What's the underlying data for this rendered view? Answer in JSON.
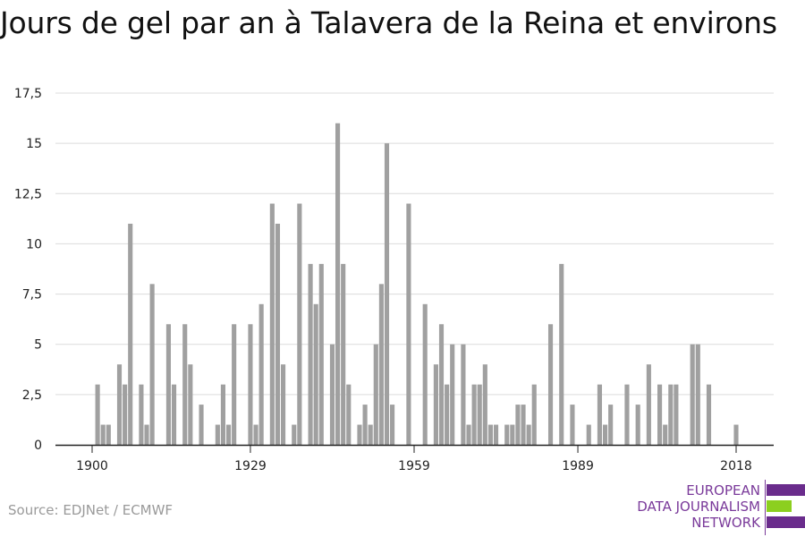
{
  "title": "Jours de gel par an à Talavera de la Reina et environs",
  "source": "Source: EDJNet / ECMWF",
  "logo": {
    "line1": "EUROPEAN",
    "line2": "DATA JOURNALISM",
    "line3": "NETWORK"
  },
  "colors": {
    "bar": "#a0a0a0",
    "grid": "#dcdcdc",
    "axis": "#222222",
    "logo_purple": "#6a2c8c",
    "logo_green": "#8ccf1f"
  },
  "chart_data": {
    "type": "bar",
    "title": "Jours de gel par an à Talavera de la Reina et environs",
    "xlabel": "",
    "ylabel": "",
    "ylim": [
      0,
      17.5
    ],
    "yticks": [
      "0",
      "2,5",
      "5",
      "7,5",
      "10",
      "12,5",
      "15",
      "17,5"
    ],
    "xticks": [
      "1900",
      "1929",
      "1959",
      "1989",
      "2018"
    ],
    "xlim": [
      1900,
      2018
    ],
    "grid": true,
    "x": [
      1900,
      1901,
      1902,
      1903,
      1904,
      1905,
      1906,
      1907,
      1908,
      1909,
      1910,
      1911,
      1912,
      1913,
      1914,
      1915,
      1916,
      1917,
      1918,
      1919,
      1920,
      1921,
      1922,
      1923,
      1924,
      1925,
      1926,
      1927,
      1928,
      1929,
      1930,
      1931,
      1932,
      1933,
      1934,
      1935,
      1936,
      1937,
      1938,
      1939,
      1940,
      1941,
      1942,
      1943,
      1944,
      1945,
      1946,
      1947,
      1948,
      1949,
      1950,
      1951,
      1952,
      1953,
      1954,
      1955,
      1956,
      1957,
      1958,
      1959,
      1960,
      1961,
      1962,
      1963,
      1964,
      1965,
      1966,
      1967,
      1968,
      1969,
      1970,
      1971,
      1972,
      1973,
      1974,
      1975,
      1976,
      1977,
      1978,
      1979,
      1980,
      1981,
      1982,
      1983,
      1984,
      1985,
      1986,
      1987,
      1988,
      1989,
      1990,
      1991,
      1992,
      1993,
      1994,
      1995,
      1996,
      1997,
      1998,
      1999,
      2000,
      2001,
      2002,
      2003,
      2004,
      2005,
      2006,
      2007,
      2008,
      2009,
      2010,
      2011,
      2012,
      2013,
      2014,
      2015,
      2016,
      2017,
      2018
    ],
    "values": [
      0,
      3,
      1,
      1,
      0,
      4,
      3,
      11,
      0,
      3,
      1,
      8,
      0,
      0,
      6,
      3,
      0,
      6,
      4,
      0,
      2,
      0,
      0,
      1,
      3,
      1,
      6,
      0,
      0,
      6,
      1,
      7,
      0,
      12,
      11,
      4,
      0,
      1,
      12,
      0,
      9,
      7,
      9,
      0,
      5,
      16,
      9,
      3,
      0,
      1,
      2,
      1,
      5,
      8,
      15,
      2,
      0,
      0,
      12,
      0,
      0,
      7,
      0,
      4,
      6,
      3,
      5,
      0,
      5,
      1,
      3,
      3,
      4,
      1,
      1,
      0,
      1,
      1,
      2,
      2,
      1,
      3,
      0,
      0,
      6,
      0,
      9,
      0,
      2,
      0,
      0,
      1,
      0,
      3,
      1,
      2,
      0,
      0,
      3,
      0,
      2,
      0,
      4,
      0,
      3,
      1,
      3,
      3,
      0,
      0,
      5,
      5,
      0,
      3,
      0,
      0,
      0,
      0,
      1
    ]
  }
}
